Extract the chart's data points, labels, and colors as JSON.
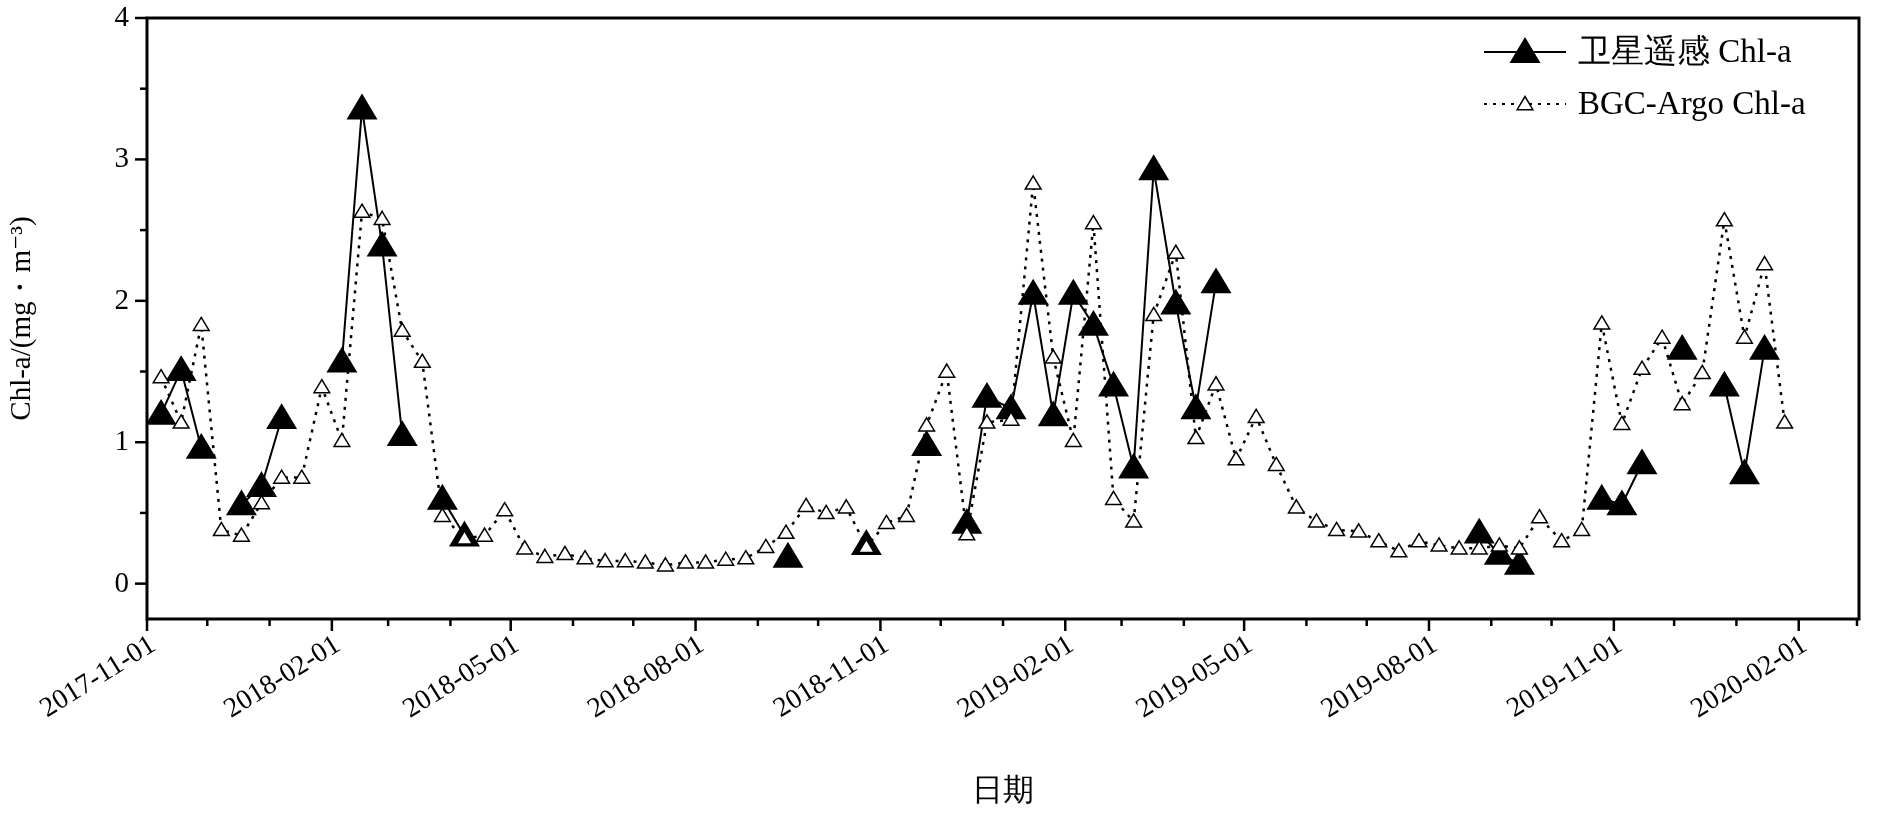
{
  "chart_data": {
    "type": "line",
    "xlabel": "日期",
    "ylabel": "Chl-a/(mg・m⁻³)",
    "xlim": [
      "2017-11-01",
      "2020-03-02"
    ],
    "ylim": [
      -0.25,
      4
    ],
    "xticks": [
      "2017-11-01",
      {
        "value": "2017-12-01",
        "label": null
      },
      {
        "value": "2018-01-01",
        "label": null
      },
      "2018-02-01",
      {
        "value": "2018-03-01",
        "label": null
      },
      {
        "value": "2018-04-01",
        "label": null
      },
      "2018-05-01",
      {
        "value": "2018-06-01",
        "label": null
      },
      {
        "value": "2018-07-01",
        "label": null
      },
      "2018-08-01",
      {
        "value": "2018-09-01",
        "label": null
      },
      {
        "value": "2018-10-01",
        "label": null
      },
      "2018-11-01",
      {
        "value": "2018-12-01",
        "label": null
      },
      {
        "value": "2019-01-01",
        "label": null
      },
      "2019-02-01",
      {
        "value": "2019-03-01",
        "label": null
      },
      {
        "value": "2019-04-01",
        "label": null
      },
      "2019-05-01",
      {
        "value": "2019-06-01",
        "label": null
      },
      {
        "value": "2019-07-01",
        "label": null
      },
      "2019-08-01",
      {
        "value": "2019-09-01",
        "label": null
      },
      {
        "value": "2019-10-01",
        "label": null
      },
      "2019-11-01",
      {
        "value": "2019-12-01",
        "label": null
      },
      {
        "value": "2020-01-01",
        "label": null
      },
      "2020-02-01",
      {
        "value": "2020-03-01",
        "label": null
      }
    ],
    "yticks": [
      0,
      {
        "value": 0.5,
        "label": null
      },
      1,
      {
        "value": 1.5,
        "label": null
      },
      2,
      {
        "value": 2.5,
        "label": null
      },
      3,
      {
        "value": 3.5,
        "label": null
      },
      4
    ],
    "legend": "top right",
    "marker": "triangle",
    "series": [
      {
        "name": "卫星遥感 Chl-a",
        "color": "#000000",
        "line_style": "solid",
        "x": [
          "2017-11-08",
          "2017-11-18",
          "2017-11-28",
          "2017-12-08",
          "2017-12-18",
          "2017-12-28",
          "2018-01-07",
          "2018-01-17",
          "2018-02-06",
          "2018-02-16",
          "2018-02-26",
          "2018-03-08",
          "2018-03-18",
          "2018-03-28",
          "2018-04-08",
          "2018-04-18",
          "2018-09-16",
          "2018-10-05",
          "2018-10-25",
          "2018-11-04",
          "2018-11-24",
          "2018-12-04",
          "2018-12-14",
          "2018-12-24",
          "2019-01-05",
          "2019-01-16",
          "2019-01-26",
          "2019-02-05",
          "2019-02-15",
          "2019-02-25",
          "2019-03-07",
          "2019-03-17",
          "2019-03-28",
          "2019-04-07",
          "2019-04-17",
          "2019-04-27",
          "2019-08-26",
          "2019-09-05",
          "2019-09-15",
          "2019-09-25",
          "2019-10-26",
          "2019-11-05",
          "2019-11-15",
          "2019-11-25",
          "2019-12-05",
          "2019-12-15",
          "2019-12-26",
          "2020-01-05",
          "2020-01-15"
        ],
        "values": [
          1.2,
          1.51,
          0.96,
          null,
          0.56,
          0.69,
          1.17,
          null,
          1.57,
          3.36,
          2.39,
          1.05,
          null,
          0.6,
          0.34,
          null,
          0.19,
          null,
          0.28,
          null,
          0.98,
          null,
          0.43,
          1.32,
          1.24,
          2.05,
          1.19,
          2.05,
          1.83,
          1.4,
          0.82,
          2.93,
          1.98,
          1.24,
          2.13,
          null,
          0.36,
          0.21,
          0.14,
          null,
          0.6,
          0.56,
          0.85,
          null,
          1.66,
          null,
          1.4,
          0.78,
          1.66
        ]
      },
      {
        "name": "BGC-Argo Chl-a",
        "color": "#000000",
        "line_style": "dotted",
        "x": [
          "2017-11-08",
          "2017-11-18",
          "2017-11-28",
          "2017-12-08",
          "2017-12-18",
          "2017-12-28",
          "2018-01-07",
          "2018-01-17",
          "2018-01-27",
          "2018-02-06",
          "2018-02-16",
          "2018-02-26",
          "2018-03-08",
          "2018-03-18",
          "2018-03-28",
          "2018-04-08",
          "2018-04-18",
          "2018-04-28",
          "2018-05-08",
          "2018-05-18",
          "2018-05-28",
          "2018-06-07",
          "2018-06-17",
          "2018-06-27",
          "2018-07-07",
          "2018-07-17",
          "2018-07-27",
          "2018-08-06",
          "2018-08-16",
          "2018-08-26",
          "2018-09-05",
          "2018-09-15",
          "2018-09-25",
          "2018-10-05",
          "2018-10-15",
          "2018-10-25",
          "2018-11-04",
          "2018-11-14",
          "2018-11-24",
          "2018-12-04",
          "2018-12-14",
          "2018-12-24",
          "2019-01-05",
          "2019-01-16",
          "2019-01-26",
          "2019-02-05",
          "2019-02-15",
          "2019-02-25",
          "2019-03-07",
          "2019-03-17",
          "2019-03-28",
          "2019-04-07",
          "2019-04-17",
          "2019-04-27",
          "2019-05-07",
          "2019-05-17",
          "2019-05-27",
          "2019-06-06",
          "2019-06-16",
          "2019-06-27",
          "2019-07-07",
          "2019-07-17",
          "2019-07-27",
          "2019-08-06",
          "2019-08-16",
          "2019-08-26",
          "2019-09-05",
          "2019-09-15",
          "2019-09-25",
          "2019-10-06",
          "2019-10-16",
          "2019-10-26",
          "2019-11-05",
          "2019-11-15",
          "2019-11-25",
          "2019-12-05",
          "2019-12-15",
          "2019-12-26",
          "2020-01-05",
          "2020-01-15",
          "2020-01-25"
        ],
        "values": [
          1.46,
          1.14,
          1.83,
          0.38,
          0.34,
          0.57,
          0.75,
          0.75,
          1.39,
          1.01,
          2.63,
          2.58,
          1.79,
          1.57,
          0.48,
          0.32,
          0.34,
          0.52,
          0.25,
          0.19,
          0.21,
          0.18,
          0.16,
          0.16,
          0.15,
          0.13,
          0.15,
          0.15,
          0.17,
          0.18,
          0.26,
          0.36,
          0.55,
          0.5,
          0.54,
          0.26,
          0.43,
          0.48,
          1.12,
          1.5,
          0.35,
          1.14,
          1.16,
          2.83,
          1.6,
          1.01,
          2.55,
          0.6,
          0.44,
          1.9,
          2.34,
          1.03,
          1.41,
          0.88,
          1.18,
          0.84,
          0.54,
          0.44,
          0.38,
          0.37,
          0.3,
          0.23,
          0.3,
          0.27,
          0.25,
          0.25,
          0.27,
          0.25,
          0.47,
          0.3,
          0.38,
          1.84,
          1.13,
          1.52,
          1.74,
          1.27,
          1.49,
          2.57,
          1.74,
          2.26,
          1.14
        ]
      }
    ]
  }
}
